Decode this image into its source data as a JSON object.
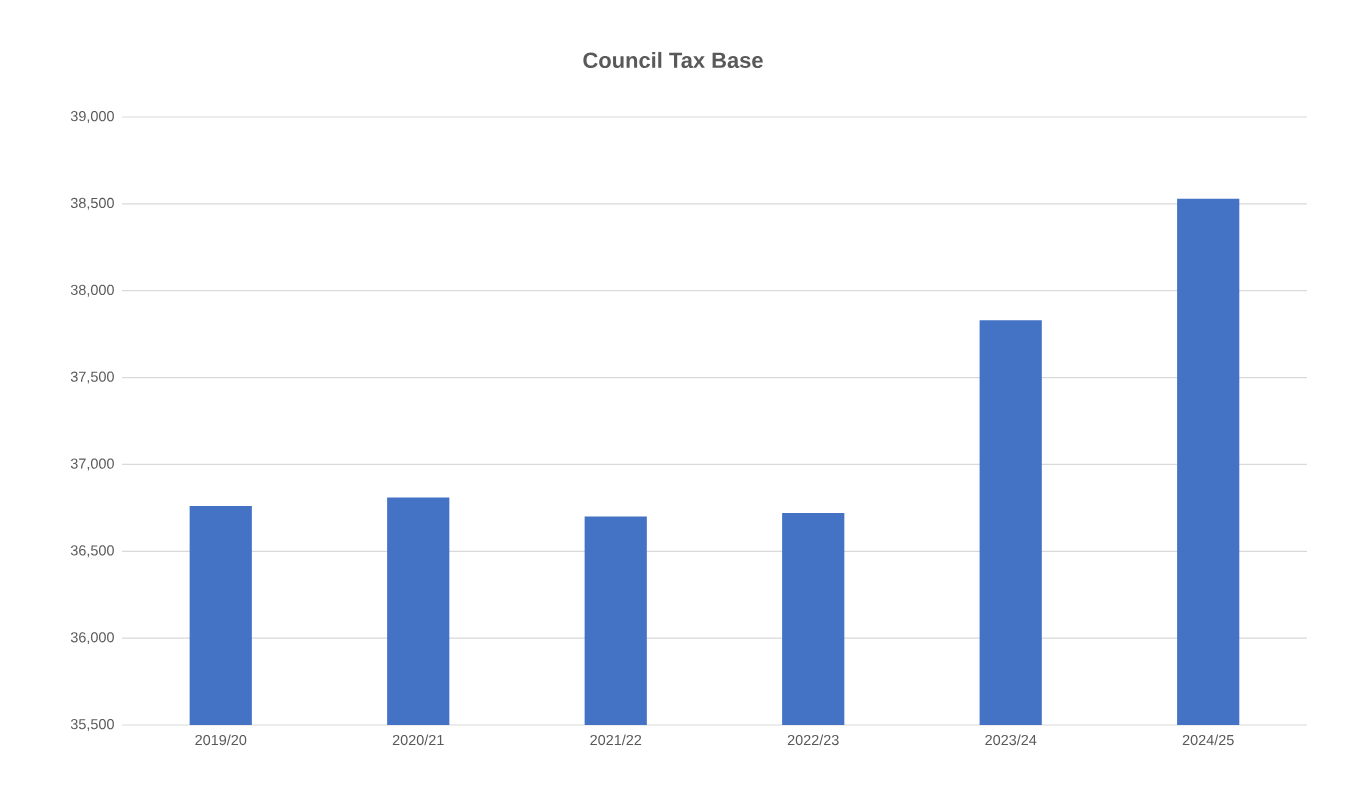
{
  "chart_data": {
    "type": "bar",
    "title": "Council Tax Base",
    "categories": [
      "2019/20",
      "2020/21",
      "2021/22",
      "2022/23",
      "2023/24",
      "2024/25"
    ],
    "values": [
      36760,
      36810,
      36700,
      36720,
      37830,
      38530
    ],
    "color": "#4472c4",
    "ylim": [
      35500,
      39000
    ],
    "yticks": [
      {
        "value": 35500,
        "label": "35,500"
      },
      {
        "value": 36000,
        "label": "36,000"
      },
      {
        "value": 36500,
        "label": "36,500"
      },
      {
        "value": 37000,
        "label": "37,000"
      },
      {
        "value": 37500,
        "label": "37,500"
      },
      {
        "value": 38000,
        "label": "38,000"
      },
      {
        "value": 38500,
        "label": "38,500"
      },
      {
        "value": 39000,
        "label": "39,000"
      }
    ],
    "grid": "y"
  }
}
